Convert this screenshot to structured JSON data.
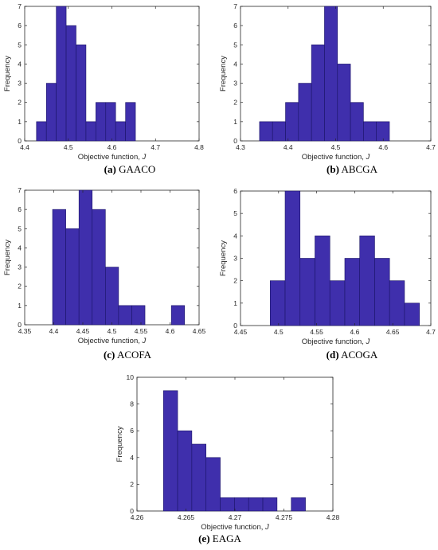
{
  "colors": {
    "bar_fill": "#3f2fac",
    "bar_edge": "#1a1466",
    "axis": "#262626",
    "background": "#ffffff"
  },
  "chart_data": [
    {
      "type": "bar",
      "caption_letter": "(a)",
      "caption_name": "GAACO",
      "xlabel": "Objective function,",
      "xlabel_var": "J",
      "ylabel": "Frequency",
      "xlim": [
        4.4,
        4.8
      ],
      "ylim": [
        0,
        7
      ],
      "xticks": [
        4.4,
        4.5,
        4.6,
        4.7,
        4.8
      ],
      "xtick_labels": [
        "4.4",
        "4.5",
        "4.6",
        "4.7",
        "4.8"
      ],
      "yticks": [
        0,
        1,
        2,
        3,
        4,
        5,
        6,
        7
      ],
      "bin_start": 4.427,
      "bin_width": 0.0227,
      "values": [
        1,
        3,
        7,
        6,
        5,
        1,
        2,
        2,
        1,
        2
      ]
    },
    {
      "type": "bar",
      "caption_letter": "(b)",
      "caption_name": "ABCGA",
      "xlabel": "Objective function,",
      "xlabel_var": "J",
      "ylabel": "Frequency",
      "xlim": [
        4.3,
        4.7
      ],
      "ylim": [
        0,
        7
      ],
      "xticks": [
        4.3,
        4.4,
        4.5,
        4.6,
        4.7
      ],
      "xtick_labels": [
        "4.3",
        "4.4",
        "4.5",
        "4.6",
        "4.7"
      ],
      "yticks": [
        0,
        1,
        2,
        3,
        4,
        5,
        6,
        7
      ],
      "bin_start": 4.34,
      "bin_width": 0.0273,
      "values": [
        1,
        1,
        2,
        3,
        5,
        7,
        4,
        2,
        1,
        1
      ]
    },
    {
      "type": "bar",
      "caption_letter": "(c)",
      "caption_name": "ACOFA",
      "xlabel": "Objective function,",
      "xlabel_var": "J",
      "ylabel": "Frequency",
      "xlim": [
        4.35,
        4.65
      ],
      "ylim": [
        0,
        7
      ],
      "xticks": [
        4.35,
        4.4,
        4.45,
        4.5,
        4.55,
        4.6,
        4.65
      ],
      "xtick_labels": [
        "4.35",
        "4.4",
        "4.45",
        "4.5",
        "4.55",
        "4.6",
        "4.65"
      ],
      "yticks": [
        0,
        1,
        2,
        3,
        4,
        5,
        6,
        7
      ],
      "bin_start": 4.398,
      "bin_width": 0.0227,
      "values": [
        6,
        5,
        7,
        6,
        3,
        1,
        1,
        0,
        0,
        1
      ]
    },
    {
      "type": "bar",
      "caption_letter": "(d)",
      "caption_name": "ACOGA",
      "xlabel": "Objective function,",
      "xlabel_var": "J",
      "ylabel": "Frequency",
      "xlim": [
        4.45,
        4.7
      ],
      "ylim": [
        0,
        6
      ],
      "xticks": [
        4.45,
        4.5,
        4.55,
        4.6,
        4.65,
        4.7
      ],
      "xtick_labels": [
        "4.45",
        "4.5",
        "4.55",
        "4.6",
        "4.65",
        "4.7"
      ],
      "yticks": [
        0,
        1,
        2,
        3,
        4,
        5,
        6
      ],
      "bin_start": 4.489,
      "bin_width": 0.0196,
      "values": [
        2,
        6,
        3,
        4,
        2,
        3,
        4,
        3,
        2,
        1
      ]
    },
    {
      "type": "bar",
      "caption_letter": "(e)",
      "caption_name": "EAGA",
      "xlabel": "Objective function,",
      "xlabel_var": "J",
      "ylabel": "Frequency",
      "xlim": [
        4.26,
        4.28
      ],
      "ylim": [
        0,
        10
      ],
      "xticks": [
        4.26,
        4.265,
        4.27,
        4.275,
        4.28
      ],
      "xtick_labels": [
        "4.26",
        "4.265",
        "4.27",
        "4.275",
        "4.28"
      ],
      "yticks": [
        0,
        2,
        4,
        6,
        8,
        10
      ],
      "bin_start": 4.2627,
      "bin_width": 0.00145,
      "values": [
        9,
        6,
        5,
        4,
        1,
        1,
        1,
        1,
        0,
        1
      ]
    }
  ]
}
